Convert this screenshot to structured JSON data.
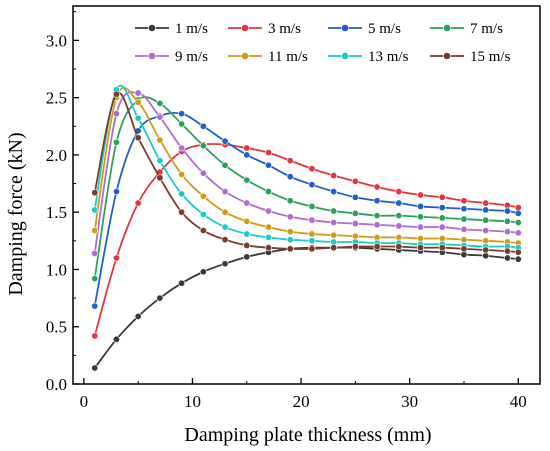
{
  "chart_data": {
    "type": "line",
    "title": "",
    "xlabel": "Damping plate thickness (mm)",
    "ylabel": "Damping force (kN)",
    "xlim": [
      -1,
      42
    ],
    "ylim": [
      0,
      3.3
    ],
    "xticks": [
      0,
      10,
      20,
      30,
      40
    ],
    "yticks": [
      0.0,
      0.5,
      1.0,
      1.5,
      2.0,
      2.5,
      3.0
    ],
    "grid": false,
    "legend": "top-right",
    "x": [
      1,
      3,
      5,
      7,
      9,
      11,
      13,
      15,
      17,
      19,
      21,
      23,
      25,
      27,
      29,
      31,
      33,
      35,
      37,
      39,
      40
    ],
    "series": [
      {
        "name": "1 m/s",
        "color": "#3a3a3a",
        "values": [
          0.14,
          0.39,
          0.59,
          0.75,
          0.88,
          0.98,
          1.05,
          1.11,
          1.15,
          1.18,
          1.19,
          1.19,
          1.19,
          1.18,
          1.17,
          1.16,
          1.15,
          1.13,
          1.12,
          1.1,
          1.09
        ]
      },
      {
        "name": "3 m/s",
        "color": "#e8333a",
        "values": [
          0.42,
          1.1,
          1.58,
          1.85,
          2.03,
          2.09,
          2.09,
          2.06,
          2.02,
          1.95,
          1.88,
          1.82,
          1.77,
          1.72,
          1.68,
          1.65,
          1.63,
          1.6,
          1.58,
          1.56,
          1.54
        ]
      },
      {
        "name": "5 m/s",
        "color": "#1f5fd6",
        "values": [
          0.68,
          1.68,
          2.21,
          2.34,
          2.36,
          2.25,
          2.12,
          2.0,
          1.91,
          1.81,
          1.74,
          1.68,
          1.63,
          1.6,
          1.58,
          1.55,
          1.54,
          1.53,
          1.52,
          1.51,
          1.49
        ]
      },
      {
        "name": "7 m/s",
        "color": "#2aa35a",
        "values": [
          0.92,
          2.11,
          2.48,
          2.45,
          2.27,
          2.08,
          1.91,
          1.78,
          1.68,
          1.6,
          1.55,
          1.51,
          1.49,
          1.47,
          1.47,
          1.46,
          1.45,
          1.44,
          1.43,
          1.42,
          1.41
        ]
      },
      {
        "name": "9 m/s",
        "color": "#b06bd6",
        "values": [
          1.14,
          2.36,
          2.54,
          2.33,
          2.06,
          1.84,
          1.68,
          1.58,
          1.51,
          1.46,
          1.43,
          1.41,
          1.4,
          1.39,
          1.38,
          1.37,
          1.37,
          1.35,
          1.34,
          1.33,
          1.32
        ]
      },
      {
        "name": "11 m/s",
        "color": "#d49a12",
        "values": [
          1.34,
          2.5,
          2.46,
          2.13,
          1.83,
          1.64,
          1.5,
          1.42,
          1.37,
          1.33,
          1.31,
          1.3,
          1.29,
          1.28,
          1.28,
          1.27,
          1.27,
          1.26,
          1.25,
          1.24,
          1.23
        ]
      },
      {
        "name": "13 m/s",
        "color": "#19cccc",
        "values": [
          1.52,
          2.57,
          2.32,
          1.95,
          1.66,
          1.48,
          1.37,
          1.31,
          1.28,
          1.26,
          1.25,
          1.24,
          1.24,
          1.23,
          1.23,
          1.22,
          1.22,
          1.21,
          1.2,
          1.2,
          1.19
        ]
      },
      {
        "name": "15 m/s",
        "color": "#7a3b2a",
        "values": [
          1.67,
          2.53,
          2.15,
          1.8,
          1.5,
          1.34,
          1.26,
          1.21,
          1.19,
          1.18,
          1.18,
          1.19,
          1.2,
          1.2,
          1.2,
          1.19,
          1.19,
          1.18,
          1.17,
          1.16,
          1.15
        ]
      }
    ]
  }
}
